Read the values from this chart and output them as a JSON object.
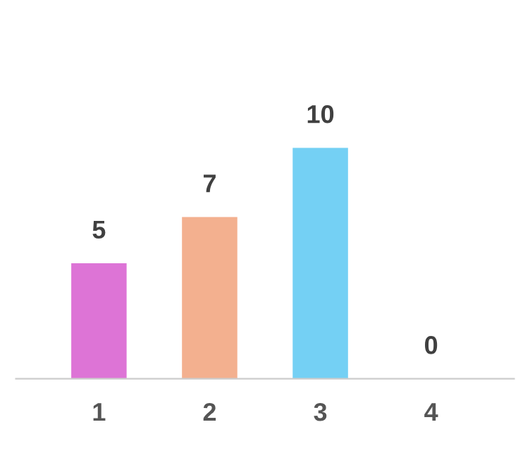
{
  "chart_data": {
    "type": "bar",
    "categories": [
      "1",
      "2",
      "3",
      "4"
    ],
    "values": [
      5,
      7,
      10,
      0
    ],
    "colors": [
      "#dd74d6",
      "#f3b08f",
      "#74d0f4",
      "#9ad8f0"
    ],
    "data_labels": true,
    "grid": false,
    "legend": false
  }
}
